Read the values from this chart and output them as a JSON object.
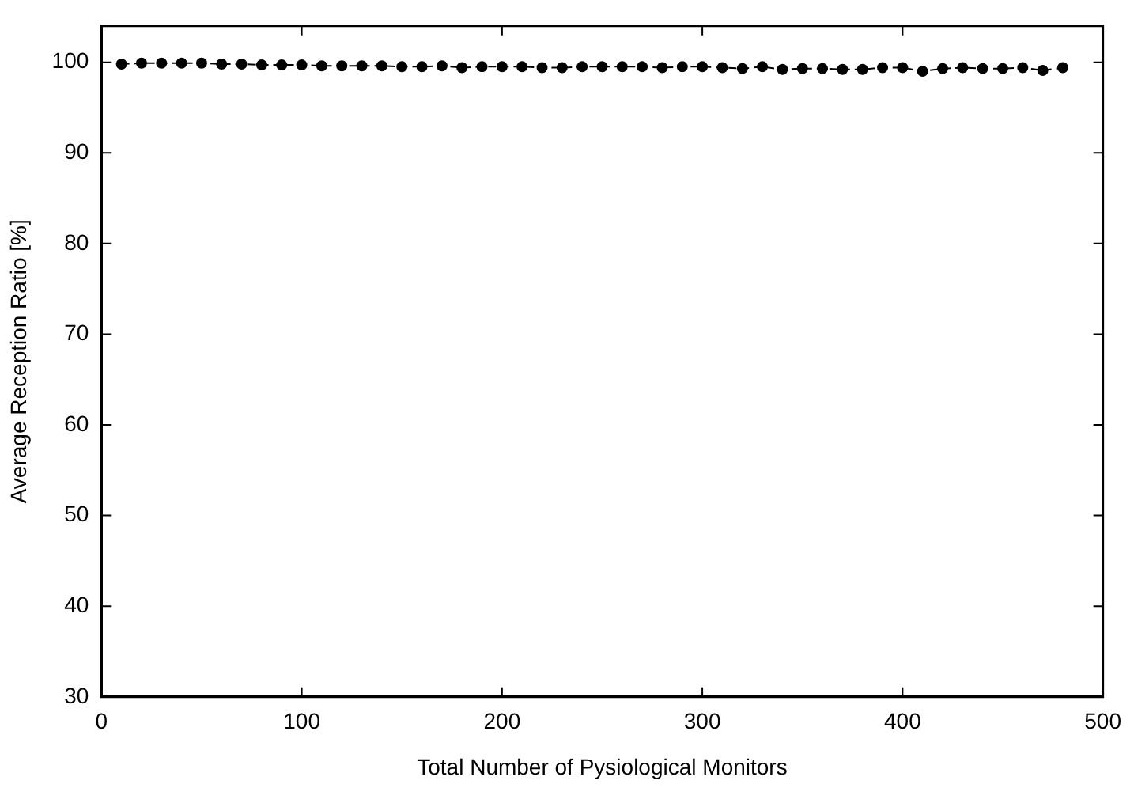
{
  "chart_data": {
    "type": "line",
    "xlabel": "Total Number of Pysiological Monitors",
    "ylabel": "Average Reception Ratio [%]",
    "x": [
      10,
      20,
      30,
      40,
      50,
      60,
      70,
      80,
      90,
      100,
      110,
      120,
      130,
      140,
      150,
      160,
      170,
      180,
      190,
      200,
      210,
      220,
      230,
      240,
      250,
      260,
      270,
      280,
      290,
      300,
      310,
      320,
      330,
      340,
      350,
      360,
      370,
      380,
      390,
      400,
      410,
      420,
      430,
      440,
      450,
      460,
      470,
      480
    ],
    "series": [
      {
        "color": "#000000",
        "values": [
          99.8,
          99.9,
          99.9,
          99.9,
          99.9,
          99.8,
          99.8,
          99.7,
          99.7,
          99.7,
          99.6,
          99.6,
          99.6,
          99.6,
          99.5,
          99.5,
          99.6,
          99.4,
          99.5,
          99.5,
          99.5,
          99.4,
          99.4,
          99.5,
          99.5,
          99.5,
          99.5,
          99.4,
          99.5,
          99.5,
          99.4,
          99.3,
          99.5,
          99.2,
          99.3,
          99.3,
          99.2,
          99.2,
          99.4,
          99.4,
          99.0,
          99.3,
          99.4,
          99.3,
          99.3,
          99.4,
          99.1,
          99.4
        ]
      }
    ],
    "xlim": [
      0,
      500
    ],
    "xticks": [
      0,
      100,
      200,
      300,
      400,
      500
    ],
    "ylim": [
      30,
      104
    ],
    "yticks": [
      30,
      40,
      50,
      60,
      70,
      80,
      90,
      100
    ],
    "grid": false,
    "legend": false,
    "marker": "circle",
    "line_style": "dashed"
  }
}
